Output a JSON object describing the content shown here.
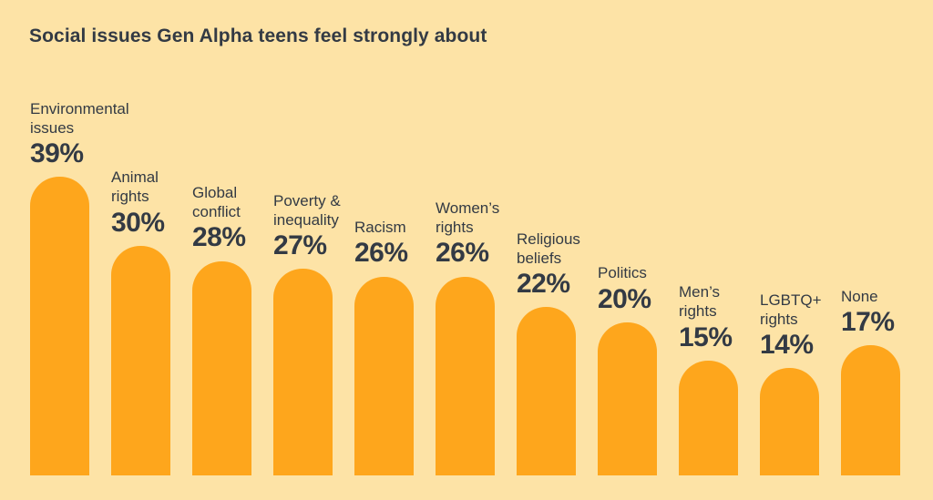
{
  "chart": {
    "title": "Social issues Gen Alpha teens feel strongly about"
  },
  "chart_data": {
    "type": "bar",
    "title": "Social issues Gen Alpha teens feel strongly about",
    "orientation": "vertical",
    "categories": [
      "Environmental issues",
      "Animal rights",
      "Global conflict",
      "Poverty & inequality",
      "Racism",
      "Women’s rights",
      "Religious beliefs",
      "Politics",
      "Men’s rights",
      "LGBTQ+ rights",
      "None"
    ],
    "category_lines": [
      "Environmental\nissues",
      "Animal\nrights",
      "Global\nconflict",
      "Poverty &\ninequality",
      "Racism",
      "Women’s\nrights",
      "Religious\nbeliefs",
      "Politics",
      "Men’s\nrights",
      "LGBTQ+\nrights",
      "None"
    ],
    "values": [
      39,
      30,
      28,
      27,
      26,
      26,
      22,
      20,
      15,
      14,
      17
    ],
    "unit": "%",
    "value_label_position": "above-bar",
    "ylim": [
      0,
      39
    ],
    "grid": false,
    "legend": false,
    "bar_color": "#FEA61C",
    "background_color": "#FDE3A6",
    "text_color": "#333A44"
  }
}
